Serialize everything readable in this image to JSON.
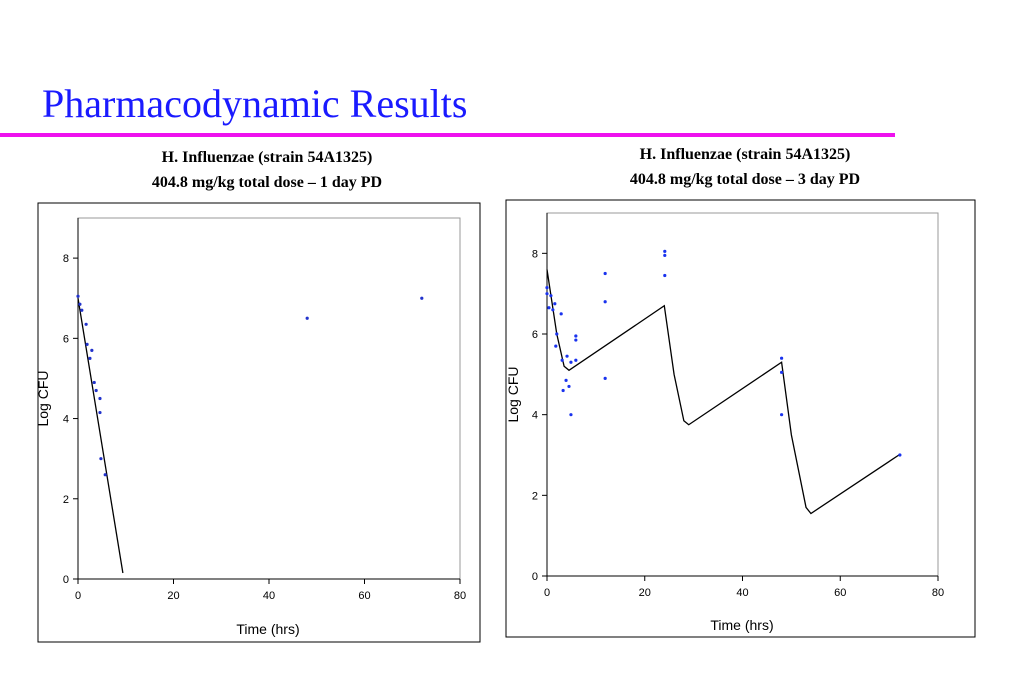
{
  "title": "Pharmacodynamic Results",
  "chart_data": [
    {
      "type": "scatter",
      "title": "H. Influenzae (strain 54A1325)",
      "subtitle": "404.8 mg/kg total dose – 1 day PD",
      "xlabel": "Time (hrs)",
      "ylabel": "Log CFU",
      "xlim": [
        0,
        80
      ],
      "xticks": [
        0,
        20,
        40,
        60,
        80
      ],
      "ylim": [
        0,
        9
      ],
      "yticks": [
        0,
        2,
        4,
        6,
        8
      ],
      "points": {
        "color": "#2233cc",
        "x": [
          0,
          0.4,
          0.8,
          1.7,
          1.9,
          2.5,
          2.9,
          3.4,
          3.8,
          4.6,
          4.6,
          4.8,
          5.7,
          48,
          72
        ],
        "values": [
          7.05,
          6.85,
          6.7,
          6.35,
          5.85,
          5.5,
          5.7,
          4.9,
          4.7,
          4.5,
          4.15,
          3.0,
          2.6,
          6.5,
          7.0
        ]
      },
      "curve": {
        "color": "#000000",
        "x": [
          0,
          9.4
        ],
        "values": [
          7.0,
          0.15
        ]
      }
    },
    {
      "type": "scatter",
      "title": "H. Influenzae (strain 54A1325)",
      "subtitle": "404.8 mg/kg total dose – 3 day PD",
      "xlabel": "Time (hrs)",
      "ylabel": "Log CFU",
      "xlim": [
        0,
        80
      ],
      "xticks": [
        0,
        20,
        40,
        60,
        80
      ],
      "ylim": [
        0,
        9
      ],
      "yticks": [
        0,
        2,
        4,
        6,
        8
      ],
      "points": {
        "color": "#1a33ee",
        "x": [
          0,
          0,
          0.4,
          0.8,
          1.2,
          1.6,
          2,
          1.8,
          2.9,
          3.1,
          3.3,
          3.9,
          4.1,
          4.5,
          4.9,
          4.9,
          5.9,
          5.9,
          5.9,
          11.9,
          11.9,
          11.9,
          24.1,
          24.1,
          24.1,
          48,
          48,
          48,
          72.2
        ],
        "values": [
          7.15,
          7.0,
          6.65,
          6.95,
          6.6,
          6.75,
          6.0,
          5.7,
          6.5,
          5.35,
          4.6,
          4.85,
          5.45,
          4.7,
          5.3,
          4.0,
          5.95,
          5.85,
          5.35,
          7.5,
          6.8,
          4.9,
          8.05,
          7.95,
          7.45,
          5.4,
          5.05,
          4.0,
          3.0
        ]
      },
      "curve": {
        "color": "#000000",
        "x": [
          0,
          2,
          3.5,
          4.5,
          24,
          26,
          28,
          29,
          48,
          50,
          53,
          54,
          72
        ],
        "values": [
          7.6,
          6.0,
          5.2,
          5.1,
          6.7,
          5.0,
          3.85,
          3.75,
          5.3,
          3.5,
          1.7,
          1.55,
          3.0
        ]
      }
    }
  ]
}
